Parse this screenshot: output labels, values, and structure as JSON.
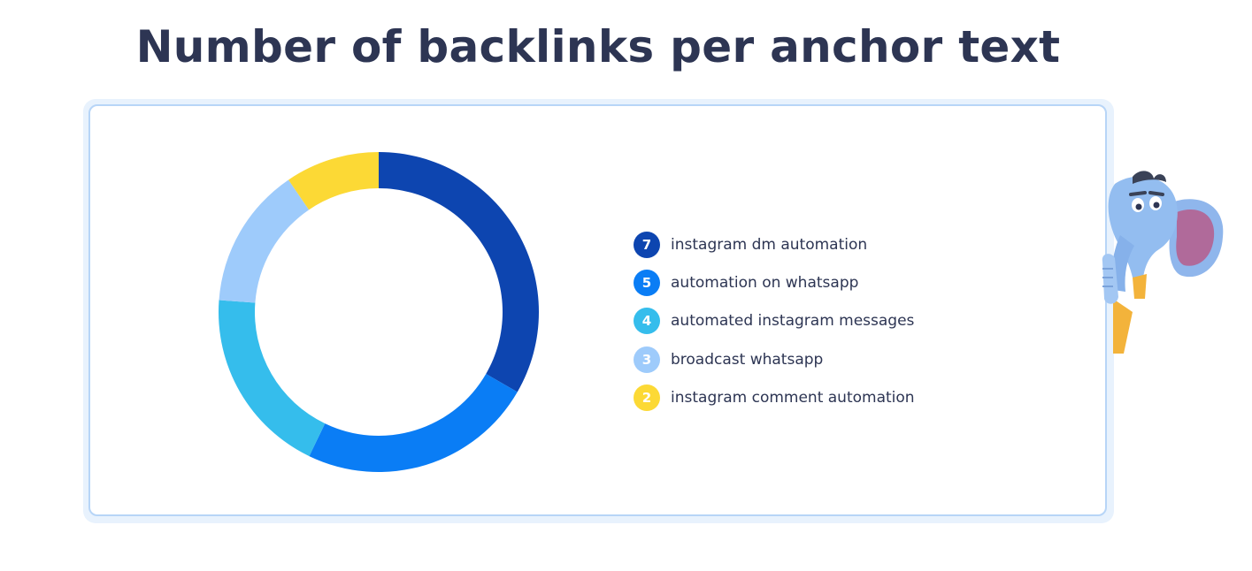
{
  "page": {
    "title": "Number of backlinks per anchor text"
  },
  "chart_data": {
    "type": "pie",
    "donut": true,
    "title": "Number of backlinks per anchor text",
    "legend_position": "right",
    "categories": [
      "instagram dm automation",
      "automation on whatsapp",
      "automated instagram messages",
      "broadcast whatsapp",
      "instagram comment automation"
    ],
    "values": [
      7,
      5,
      4,
      3,
      2
    ],
    "colors": [
      "#0d45b0",
      "#0a7df5",
      "#35bdec",
      "#9ecbfb",
      "#fcd935"
    ]
  },
  "mascot": {
    "icon": "elephant-mascot-icon"
  }
}
